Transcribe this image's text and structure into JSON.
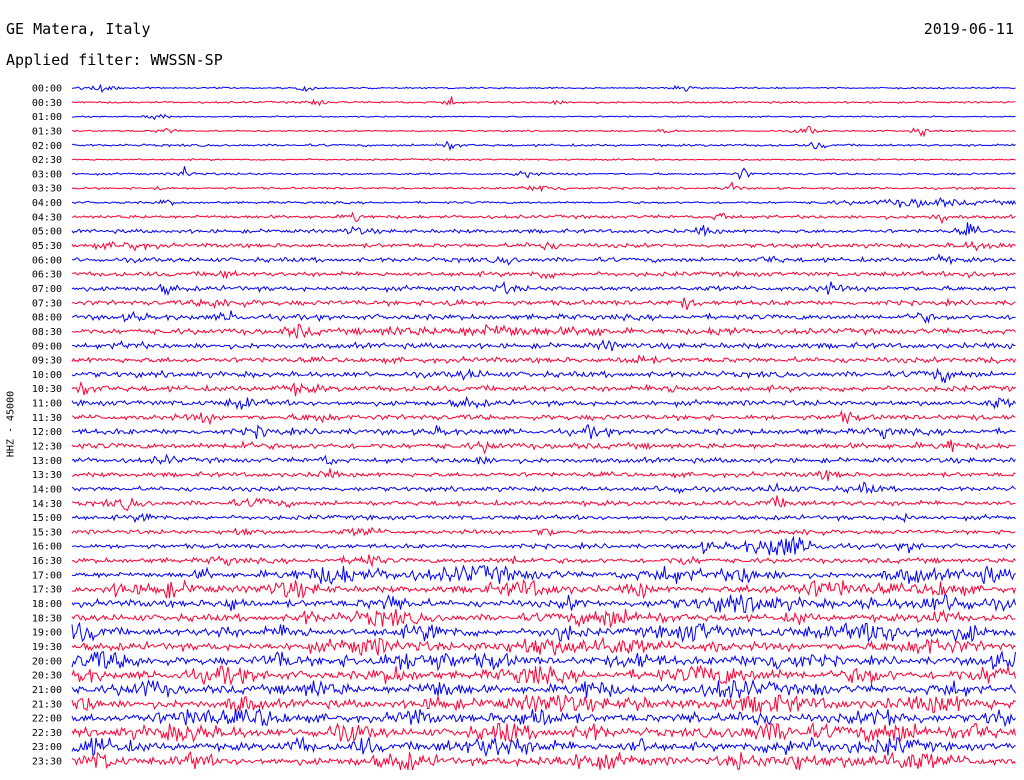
{
  "header": {
    "station": "GE Matera, Italy",
    "date": "2019-06-11",
    "filter": "Applied filter: WWSSN-SP"
  },
  "chart_data": {
    "type": "line",
    "title": "GE Matera, Italy",
    "subtitle": "Applied filter: WWSSN-SP",
    "ylabel": "HHZ - 45000",
    "row_labels": [
      "00:00",
      "00:30",
      "01:00",
      "01:30",
      "02:00",
      "02:30",
      "03:00",
      "03:30",
      "04:00",
      "04:30",
      "05:00",
      "05:30",
      "06:00",
      "06:30",
      "07:00",
      "07:30",
      "08:00",
      "08:30",
      "09:00",
      "09:30",
      "10:00",
      "10:30",
      "11:00",
      "11:30",
      "12:00",
      "12:30",
      "13:00",
      "13:30",
      "14:00",
      "14:30",
      "15:00",
      "15:30",
      "16:00",
      "16:30",
      "17:00",
      "17:30",
      "18:00",
      "18:30",
      "19:00",
      "19:30",
      "20:00",
      "20:30",
      "21:00",
      "21:30",
      "22:00",
      "22:30",
      "23:00",
      "23:30"
    ],
    "row_colors": [
      "#0000ff",
      "#ff0033"
    ],
    "noise_levels": [
      0.4,
      0.5,
      0.35,
      0.4,
      0.6,
      0.45,
      0.55,
      0.55,
      0.6,
      0.9,
      1.0,
      1.1,
      1.2,
      1.2,
      1.3,
      1.3,
      1.4,
      1.5,
      1.4,
      1.4,
      1.5,
      1.5,
      1.4,
      1.4,
      1.5,
      1.5,
      1.3,
      1.2,
      1.2,
      1.3,
      1.2,
      1.1,
      1.2,
      1.3,
      1.5,
      1.7,
      1.8,
      1.8,
      1.9,
      2.0,
      2.0,
      2.0,
      2.1,
      2.1,
      2.1,
      2.1,
      2.0,
      2.0
    ],
    "bursts": [
      [
        [
          0.03,
          2.2,
          0.012
        ],
        [
          0.25,
          1.8,
          0.01
        ],
        [
          0.65,
          1.5,
          0.01
        ]
      ],
      [
        [
          0.26,
          1.8,
          0.01
        ],
        [
          0.4,
          3.5,
          0.006
        ],
        [
          0.51,
          1.5,
          0.008
        ]
      ],
      [
        [
          0.09,
          2.4,
          0.008
        ]
      ],
      [
        [
          0.1,
          2.2,
          0.008
        ],
        [
          0.63,
          1.8,
          0.006
        ],
        [
          0.78,
          2.5,
          0.01
        ],
        [
          0.9,
          2.5,
          0.008
        ]
      ],
      [
        [
          0.4,
          2.2,
          0.01
        ],
        [
          0.79,
          3,
          0.006
        ]
      ],
      [],
      [
        [
          0.12,
          4,
          0.006
        ],
        [
          0.48,
          2.5,
          0.008
        ],
        [
          0.71,
          4,
          0.006
        ]
      ],
      [
        [
          0.09,
          2.2,
          0.006
        ],
        [
          0.5,
          2,
          0.02
        ],
        [
          0.7,
          4,
          0.006
        ]
      ],
      [
        [
          0.1,
          2.2,
          0.006
        ],
        [
          0.9,
          2.2,
          0.06
        ]
      ],
      [
        [
          0.3,
          4,
          0.006
        ],
        [
          0.69,
          2.5,
          0.008
        ],
        [
          0.92,
          3.5,
          0.006
        ]
      ],
      [
        [
          0.3,
          2,
          0.012
        ],
        [
          0.67,
          2.5,
          0.008
        ],
        [
          0.95,
          3.5,
          0.008
        ]
      ],
      [
        [
          0.06,
          2,
          0.02
        ],
        [
          0.5,
          2,
          0.015
        ],
        [
          0.96,
          2,
          0.02
        ]
      ],
      [
        [
          0.46,
          2.5,
          0.008
        ],
        [
          0.74,
          2.4,
          0.008
        ],
        [
          0.92,
          2.4,
          0.008
        ]
      ],
      [
        [
          0.16,
          2.2,
          0.01
        ],
        [
          0.5,
          2.4,
          0.01
        ],
        [
          0.96,
          2.4,
          0.01
        ]
      ],
      [
        [
          0.1,
          2.2,
          0.01
        ],
        [
          0.46,
          2.2,
          0.01
        ],
        [
          0.8,
          2.2,
          0.012
        ]
      ],
      [
        [
          0.16,
          2.6,
          0.02
        ],
        [
          0.4,
          2.2,
          0.012
        ],
        [
          0.65,
          2.4,
          0.01
        ]
      ],
      [
        [
          0.07,
          2.2,
          0.01
        ],
        [
          0.17,
          2.5,
          0.01
        ],
        [
          0.9,
          2.2,
          0.01
        ]
      ],
      [
        [
          0.24,
          3.2,
          0.012
        ],
        [
          0.34,
          2,
          0.02
        ],
        [
          0.45,
          3,
          0.05
        ],
        [
          0.55,
          2.2,
          0.015
        ],
        [
          0.69,
          2.4,
          0.01
        ]
      ],
      [
        [
          0.06,
          2.2,
          0.01
        ],
        [
          0.57,
          2.2,
          0.012
        ]
      ],
      [
        [
          0.6,
          2.2,
          0.012
        ],
        [
          0.97,
          2.2,
          0.01
        ]
      ],
      [
        [
          0.42,
          2.2,
          0.012
        ],
        [
          0.92,
          2.6,
          0.02
        ]
      ],
      [
        [
          0.01,
          2.8,
          0.015
        ],
        [
          0.24,
          2.2,
          0.015
        ],
        [
          0.63,
          2.2,
          0.012
        ]
      ],
      [
        [
          0.18,
          2.4,
          0.015
        ],
        [
          0.42,
          2.4,
          0.012
        ],
        [
          0.98,
          2.4,
          0.01
        ]
      ],
      [
        [
          0.14,
          2.4,
          0.01
        ],
        [
          0.26,
          2.2,
          0.015
        ],
        [
          0.82,
          2.2,
          0.012
        ]
      ],
      [
        [
          0.2,
          2.2,
          0.012
        ],
        [
          0.39,
          3,
          0.008
        ],
        [
          0.55,
          2.2,
          0.012
        ],
        [
          0.86,
          2.6,
          0.01
        ]
      ],
      [
        [
          0.18,
          2.2,
          0.01
        ],
        [
          0.44,
          2.4,
          0.01
        ],
        [
          0.93,
          3.2,
          0.01
        ]
      ],
      [
        [
          0.1,
          2.2,
          0.01
        ],
        [
          0.27,
          2.6,
          0.008
        ],
        [
          0.43,
          2.4,
          0.01
        ]
      ],
      [
        [
          0.27,
          2.6,
          0.008
        ],
        [
          0.8,
          2.2,
          0.012
        ]
      ],
      [
        [
          0.64,
          2.2,
          0.015
        ],
        [
          0.75,
          2.2,
          0.015
        ],
        [
          0.84,
          2.2,
          0.015
        ]
      ],
      [
        [
          0.06,
          2.6,
          0.015
        ],
        [
          0.2,
          2.2,
          0.02
        ],
        [
          0.75,
          2.4,
          0.015
        ]
      ],
      [
        [
          0.08,
          2.2,
          0.012
        ],
        [
          0.88,
          2.6,
          0.008
        ]
      ],
      [
        [
          0.18,
          2.2,
          0.012
        ],
        [
          0.31,
          2.2,
          0.015
        ],
        [
          0.5,
          2.4,
          0.012
        ],
        [
          0.78,
          2.2,
          0.012
        ]
      ],
      [
        [
          0.67,
          2.4,
          0.01
        ],
        [
          0.75,
          6,
          0.035
        ],
        [
          0.89,
          3.2,
          0.008
        ]
      ],
      [
        [
          0.16,
          2.2,
          0.012
        ],
        [
          0.31,
          4.5,
          0.012
        ],
        [
          0.47,
          2.2,
          0.012
        ],
        [
          0.65,
          2.2,
          0.012
        ]
      ],
      [
        [
          0.14,
          2.8,
          0.008
        ],
        [
          0.28,
          5,
          0.04
        ],
        [
          0.43,
          5,
          0.05
        ],
        [
          0.63,
          4,
          0.03
        ],
        [
          0.71,
          4,
          0.025
        ],
        [
          0.89,
          4,
          0.025
        ],
        [
          0.97,
          4,
          0.025
        ]
      ],
      [
        [
          0.05,
          2.2,
          0.01
        ],
        [
          0.1,
          4,
          0.03
        ],
        [
          0.23,
          4,
          0.025
        ],
        [
          0.48,
          4,
          0.03
        ],
        [
          0.6,
          4,
          0.01
        ],
        [
          0.8,
          4,
          0.05
        ],
        [
          0.92,
          4,
          0.02
        ]
      ],
      [
        [
          0.17,
          4,
          0.01
        ],
        [
          0.34,
          4,
          0.02
        ],
        [
          0.53,
          3,
          0.01
        ],
        [
          0.71,
          4.5,
          0.05
        ],
        [
          0.84,
          3,
          0.008
        ],
        [
          0.93,
          4,
          0.045
        ]
      ],
      [
        [
          0.25,
          3,
          0.01
        ],
        [
          0.33,
          4,
          0.035
        ],
        [
          0.57,
          4.5,
          0.045
        ],
        [
          0.77,
          3,
          0.01
        ],
        [
          0.92,
          3.5,
          0.015
        ]
      ],
      [
        [
          0.01,
          4.5,
          0.02
        ],
        [
          0.16,
          2.6,
          0.01
        ],
        [
          0.23,
          4,
          0.015
        ],
        [
          0.38,
          4,
          0.025
        ],
        [
          0.52,
          4,
          0.015
        ],
        [
          0.66,
          4.5,
          0.035
        ],
        [
          0.85,
          4.5,
          0.06
        ],
        [
          0.95,
          4,
          0.015
        ]
      ],
      [
        [
          0.31,
          4,
          0.04
        ],
        [
          0.49,
          4,
          0.035
        ],
        [
          0.57,
          4,
          0.045
        ],
        [
          0.68,
          3,
          0.01
        ],
        [
          0.91,
          4,
          0.035
        ]
      ],
      [
        [
          0.03,
          4.5,
          0.035
        ],
        [
          0.22,
          4,
          0.015
        ],
        [
          0.37,
          4.5,
          0.06
        ],
        [
          0.45,
          3,
          0.01
        ],
        [
          0.6,
          3.5,
          0.025
        ],
        [
          0.75,
          4.5,
          0.035
        ],
        [
          0.99,
          4.5,
          0.02
        ]
      ],
      [
        [
          0.01,
          4,
          0.015
        ],
        [
          0.16,
          4.5,
          0.035
        ],
        [
          0.34,
          3.5,
          0.02
        ],
        [
          0.49,
          4.5,
          0.03
        ],
        [
          0.68,
          4.5,
          0.05
        ],
        [
          0.84,
          4,
          0.02
        ],
        [
          0.98,
          4.5,
          0.035
        ]
      ],
      [
        [
          0.08,
          4.5,
          0.02
        ],
        [
          0.26,
          4.5,
          0.02
        ],
        [
          0.39,
          4.5,
          0.02
        ],
        [
          0.55,
          4.5,
          0.02
        ],
        [
          0.7,
          4.5,
          0.035
        ],
        [
          0.79,
          3,
          0.01
        ],
        [
          0.93,
          4,
          0.015
        ]
      ],
      [
        [
          0.01,
          4,
          0.015
        ],
        [
          0.18,
          4.5,
          0.015
        ],
        [
          0.39,
          3.5,
          0.015
        ],
        [
          0.51,
          4.5,
          0.045
        ],
        [
          0.6,
          3,
          0.01
        ],
        [
          0.74,
          4.5,
          0.045
        ],
        [
          0.92,
          4,
          0.04
        ]
      ],
      [
        [
          0.13,
          4.5,
          0.03
        ],
        [
          0.2,
          4.5,
          0.02
        ],
        [
          0.36,
          4,
          0.015
        ],
        [
          0.49,
          5,
          0.025
        ],
        [
          0.66,
          2.6,
          0.01
        ],
        [
          0.72,
          4,
          0.015
        ],
        [
          0.86,
          4.5,
          0.025
        ],
        [
          0.98,
          4.5,
          0.01
        ]
      ],
      [
        [
          0.12,
          4.5,
          0.04
        ],
        [
          0.29,
          4.5,
          0.025
        ],
        [
          0.46,
          5,
          0.025
        ],
        [
          0.55,
          4,
          0.015
        ],
        [
          0.74,
          4.5,
          0.04
        ],
        [
          0.87,
          4.5,
          0.05
        ],
        [
          0.96,
          4,
          0.015
        ]
      ],
      [
        [
          0.02,
          4.5,
          0.035
        ],
        [
          0.24,
          4.5,
          0.01
        ],
        [
          0.31,
          4,
          0.012
        ],
        [
          0.45,
          5,
          0.045
        ],
        [
          0.6,
          4.5,
          0.01
        ],
        [
          0.77,
          4.5,
          0.035
        ],
        [
          0.87,
          4.5,
          0.025
        ]
      ],
      [
        [
          0.03,
          4,
          0.015
        ],
        [
          0.13,
          4.5,
          0.012
        ],
        [
          0.35,
          4.5,
          0.025
        ],
        [
          0.55,
          4.5,
          0.04
        ],
        [
          0.71,
          4,
          0.015
        ],
        [
          0.77,
          4.5,
          0.02
        ],
        [
          0.88,
          4.5,
          0.045
        ]
      ]
    ]
  }
}
